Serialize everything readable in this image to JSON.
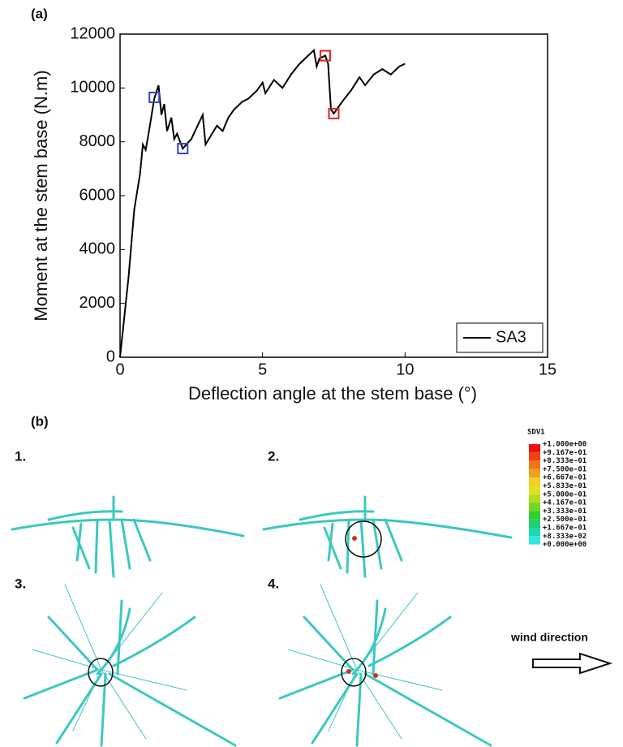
{
  "chart_data": {
    "type": "line",
    "x_label": "Deflection angle at the stem base (°)",
    "y_label": "Moment at the stem base (N.m)",
    "x": [
      0,
      0.3,
      0.5,
      0.7,
      0.8,
      0.9,
      1.0,
      1.2,
      1.35,
      1.45,
      1.55,
      1.65,
      1.8,
      1.9,
      2.0,
      2.2,
      2.5,
      2.9,
      3.0,
      3.4,
      3.6,
      3.8,
      4.0,
      4.3,
      4.5,
      4.8,
      5.0,
      5.1,
      5.4,
      5.7,
      6.0,
      6.3,
      6.6,
      6.8,
      6.9,
      7.0,
      7.2,
      7.3,
      7.4,
      7.5,
      7.8,
      8.1,
      8.4,
      8.6,
      8.9,
      9.2,
      9.5,
      9.8,
      10.0
    ],
    "series": [
      {
        "name": "SA3",
        "color": "#000000",
        "values": [
          0,
          3000,
          5500,
          6800,
          7900,
          7700,
          8300,
          9600,
          10100,
          9000,
          9400,
          8400,
          8900,
          8100,
          8300,
          7750,
          8100,
          9000,
          7900,
          8600,
          8400,
          8900,
          9200,
          9500,
          9600,
          9900,
          10200,
          9800,
          10300,
          10000,
          10500,
          10900,
          11200,
          11400,
          10800,
          11100,
          11200,
          10900,
          9200,
          9050,
          9500,
          9900,
          10400,
          10100,
          10500,
          10700,
          10500,
          10800,
          10900
        ]
      }
    ],
    "markers": [
      {
        "x": 1.2,
        "y": 9650,
        "color": "#3344cc"
      },
      {
        "x": 2.2,
        "y": 7750,
        "color": "#3344cc"
      },
      {
        "x": 7.2,
        "y": 11200,
        "color": "#dd2222"
      },
      {
        "x": 7.5,
        "y": 9050,
        "color": "#dd2222"
      }
    ],
    "xlim": [
      0,
      15
    ],
    "xticks": [
      0,
      5,
      10,
      15
    ],
    "ylim": [
      0,
      12000
    ],
    "yticks": [
      0,
      2000,
      4000,
      6000,
      8000,
      10000,
      12000
    ],
    "grid": false,
    "legend": "lower right"
  },
  "labels": {
    "a": "(a)",
    "b": "(b)",
    "subpanels": [
      "1.",
      "2.",
      "3.",
      "4."
    ],
    "wind": "wind direction"
  },
  "colorbar": {
    "title": "SDV1",
    "labels": [
      "+1.000e+00",
      "+9.167e-01",
      "+8.333e-01",
      "+7.500e-01",
      "+6.667e-01",
      "+5.833e-01",
      "+5.000e-01",
      "+4.167e-01",
      "+3.333e-01",
      "+2.500e-01",
      "+1.667e-01",
      "+8.333e-02",
      "+0.000e+00"
    ],
    "colors": [
      "#ee1111",
      "#ee4411",
      "#ee7711",
      "#f0a020",
      "#f0d020",
      "#e0e020",
      "#b0e020",
      "#70d820",
      "#30d030",
      "#20d070",
      "#20d8b0",
      "#30e8e0"
    ]
  }
}
